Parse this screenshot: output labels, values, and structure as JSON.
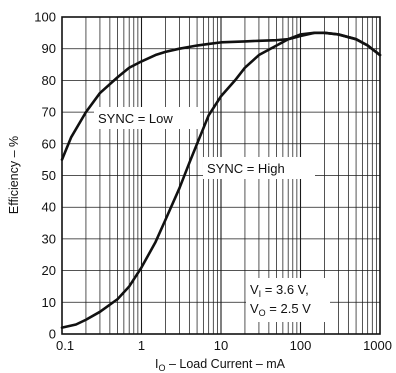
{
  "chart_data": {
    "type": "line",
    "xlabel_prefix": "I",
    "xlabel_sub": "O",
    "xlabel_rest": " – Load Current – mA",
    "ylabel": "Efficiency – %",
    "x_scale": "log",
    "xlim": [
      0.1,
      1000
    ],
    "ylim": [
      0,
      100
    ],
    "x_ticks": [
      0.1,
      1,
      10,
      100,
      1000
    ],
    "x_tick_labels": [
      "0.1",
      "1",
      "10",
      "100",
      "1000"
    ],
    "y_ticks": [
      0,
      10,
      20,
      30,
      40,
      50,
      60,
      70,
      80,
      90,
      100
    ],
    "y_tick_labels": [
      "0",
      "10",
      "20",
      "30",
      "40",
      "50",
      "60",
      "70",
      "80",
      "90",
      "100"
    ],
    "grid": true,
    "series": [
      {
        "name": "SYNC = Low",
        "color": "#111111",
        "x": [
          0.1,
          0.13,
          0.2,
          0.3,
          0.5,
          0.7,
          1,
          1.5,
          2,
          3,
          5,
          7,
          10,
          20,
          30,
          50,
          70,
          100,
          150,
          200,
          300,
          500,
          700,
          1000
        ],
        "y": [
          55,
          62,
          70,
          76,
          81,
          84,
          86,
          88,
          89,
          90,
          91,
          91.5,
          92,
          92.3,
          92.5,
          92.7,
          93,
          94,
          95,
          95,
          94.5,
          93,
          91,
          88
        ]
      },
      {
        "name": "SYNC = High",
        "color": "#111111",
        "x": [
          0.1,
          0.15,
          0.2,
          0.3,
          0.5,
          0.7,
          1,
          1.5,
          2,
          3,
          4,
          5,
          7,
          10,
          15,
          20,
          30,
          50,
          70,
          100,
          150,
          200,
          300,
          500,
          700,
          1000
        ],
        "y": [
          2,
          3,
          4.5,
          7,
          11,
          15,
          21,
          29,
          36,
          46,
          54,
          60,
          69,
          75,
          80,
          84,
          88,
          91,
          93,
          94.5,
          95,
          95,
          94.5,
          93,
          91,
          88
        ]
      }
    ],
    "annotations": {
      "sync_low": "SYNC = Low",
      "sync_high": "SYNC = High",
      "vi_prefix": "V",
      "vi_sub": "I",
      "vi_rest": " = 3.6 V,",
      "vo_prefix": "V",
      "vo_sub": "O",
      "vo_rest": " = 2.5 V"
    }
  }
}
